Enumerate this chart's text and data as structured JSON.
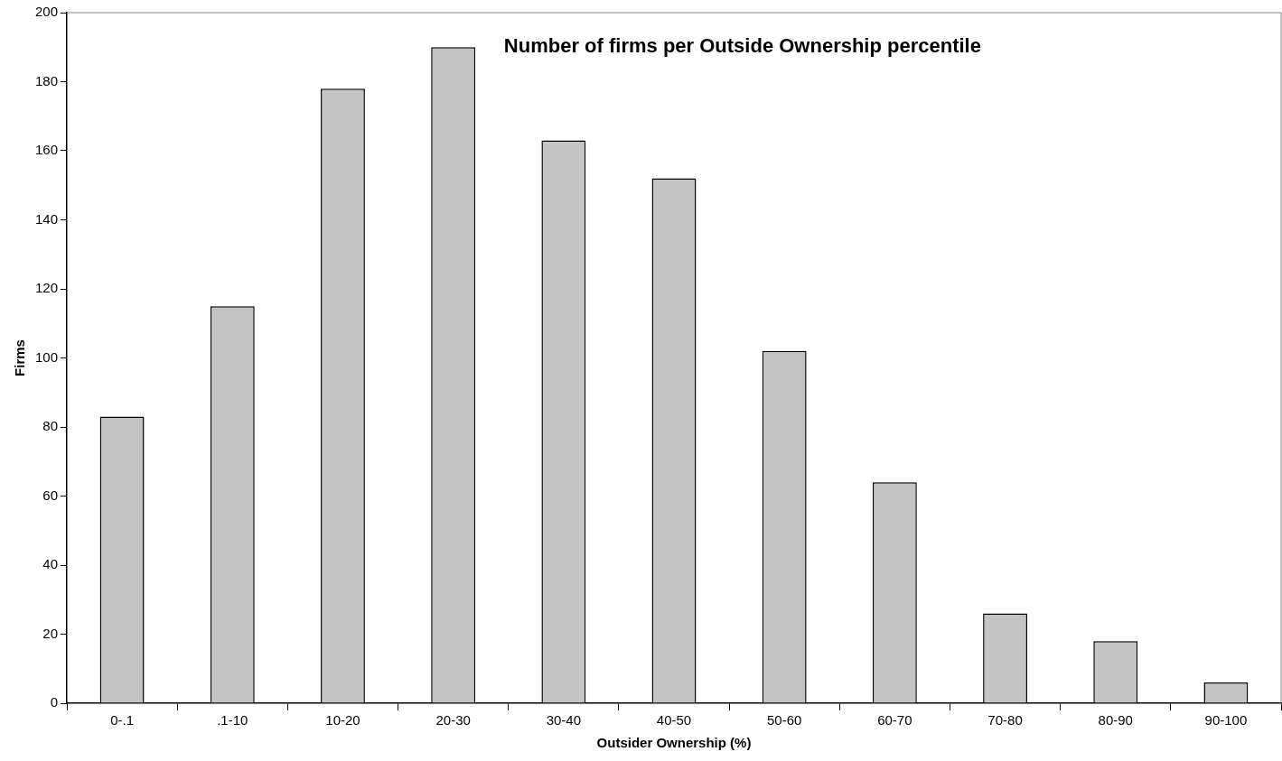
{
  "chart_data": {
    "type": "bar",
    "title": "Number of firms per Outside Ownership percentile",
    "xlabel": "Outsider Ownership (%)",
    "ylabel": "Firms",
    "categories": [
      "0-.1",
      ".1-10",
      "10-20",
      "20-30",
      "30-40",
      "40-50",
      "50-60",
      "60-70",
      "70-80",
      "80-90",
      "90-100"
    ],
    "values": [
      83,
      115,
      178,
      190,
      163,
      152,
      102,
      64,
      26,
      18,
      6
    ],
    "color": "#c4c4c4",
    "ylim": [
      0,
      200
    ],
    "yticks": [
      0,
      20,
      40,
      60,
      80,
      100,
      120,
      140,
      160,
      180,
      200
    ],
    "grid": false,
    "legend": false
  }
}
